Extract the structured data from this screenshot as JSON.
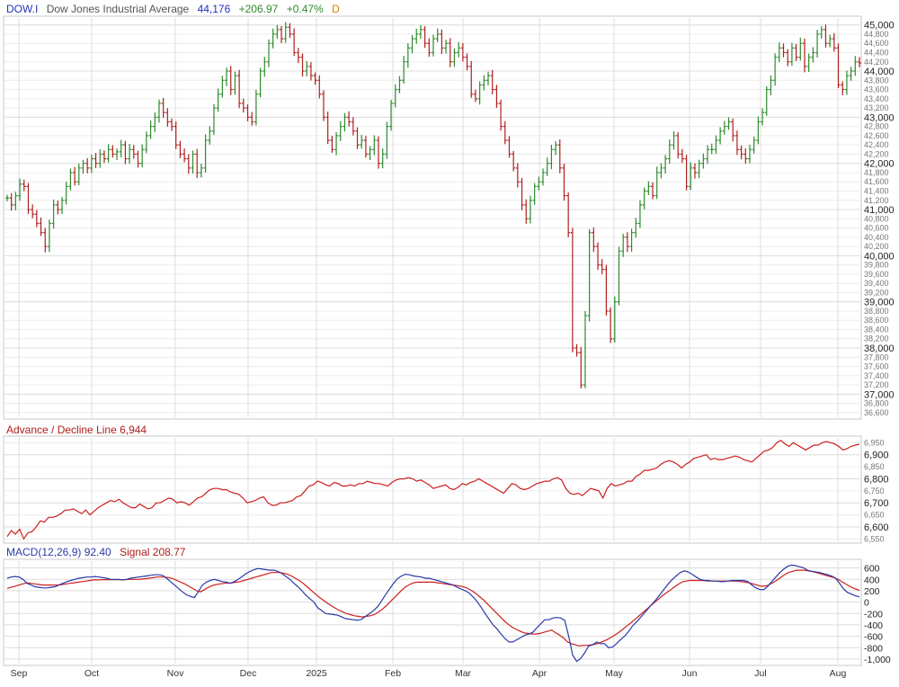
{
  "colors": {
    "up": "#2e8b2e",
    "down": "#b02020",
    "ad_line": "#cc1f1f",
    "macd": "#2b3aa8",
    "signal": "#cc1f1f",
    "symbol": "#2233bb",
    "grid": "#dcdcdc",
    "frame": "#c8c8c8",
    "axis_text": "#444444"
  },
  "header_price": {
    "symbol": "DOW.I",
    "name": "Dow Jones Industrial Average",
    "last": "44,176",
    "change": "+206.97",
    "change_pct": "+0.47%",
    "period": "D"
  },
  "header_ad": {
    "label": "Advance / Decline Line 6,944"
  },
  "header_macd": {
    "label": "MACD(12,26,9) 92.40",
    "signal_label": "Signal 208.77"
  },
  "chart_data": [
    {
      "type": "line",
      "title": "Dow Jones Industrial Average",
      "style": "ohlc-bars",
      "ylim": [
        36500,
        45150
      ],
      "y_major_ticks": [
        "45,000",
        "44,000",
        "43,000",
        "42,000",
        "41,000",
        "40,000",
        "39,000",
        "38,000",
        "37,000"
      ],
      "y_minor_ticks": [
        "44,800",
        "44,600",
        "44,400",
        "44,200",
        "43,800",
        "43,600",
        "43,400",
        "43,200",
        "42,800",
        "42,600",
        "42,400",
        "42,200",
        "41,800",
        "41,600",
        "41,400",
        "41,200",
        "40,800",
        "40,600",
        "40,400",
        "40,200",
        "39,800",
        "39,600",
        "39,400",
        "39,200",
        "38,800",
        "38,600",
        "38,400",
        "38,200",
        "37,800",
        "37,600",
        "37,400",
        "37,200",
        "36,800",
        "36,600"
      ],
      "x_tick_labels": [
        "Sep",
        "Oct",
        "Nov",
        "Dec",
        "2025",
        "Feb",
        "Mar",
        "Apr",
        "May",
        "Jun",
        "Jul",
        "Aug"
      ],
      "series": [
        {
          "name": "DOW.I",
          "closes": [
            41250,
            41100,
            41300,
            41550,
            41500,
            41000,
            40900,
            40700,
            40500,
            40200,
            40700,
            41100,
            41000,
            41200,
            41500,
            41800,
            41600,
            41900,
            42000,
            41900,
            42100,
            42000,
            42200,
            42100,
            42300,
            42200,
            42250,
            42400,
            42100,
            42300,
            42200,
            42000,
            42300,
            42600,
            42800,
            43000,
            43300,
            43100,
            42900,
            42800,
            42400,
            42200,
            42100,
            41900,
            42200,
            41800,
            41900,
            42500,
            42700,
            43200,
            43500,
            43800,
            44000,
            43600,
            43900,
            43300,
            43200,
            43000,
            42900,
            43500,
            44000,
            44200,
            44600,
            44800,
            44900,
            44700,
            44950,
            44800,
            44400,
            44300,
            44000,
            44100,
            43900,
            43800,
            43500,
            43000,
            42500,
            42300,
            42600,
            42800,
            43000,
            42900,
            42700,
            42400,
            42500,
            42200,
            42300,
            42500,
            42000,
            42200,
            42800,
            43300,
            43600,
            43800,
            44200,
            44500,
            44700,
            44800,
            44900,
            44600,
            44400,
            44700,
            44800,
            44500,
            44600,
            44200,
            44400,
            44500,
            44300,
            44100,
            43500,
            43400,
            43700,
            43800,
            43900,
            43600,
            43300,
            42800,
            42500,
            42200,
            41900,
            41600,
            41100,
            40800,
            41200,
            41500,
            41600,
            41800,
            42000,
            42300,
            42400,
            41900,
            41300,
            40500,
            38000,
            37900,
            37200,
            38700,
            40500,
            40200,
            39800,
            39700,
            38800,
            38200,
            39000,
            40100,
            40400,
            40200,
            40500,
            40700,
            41100,
            41400,
            41500,
            41300,
            41800,
            41900,
            42100,
            42400,
            42600,
            42200,
            42100,
            41500,
            41900,
            41800,
            42000,
            42100,
            42300,
            42300,
            42500,
            42700,
            42800,
            42900,
            42600,
            42300,
            42200,
            42100,
            42300,
            42500,
            42900,
            43100,
            43600,
            43800,
            44300,
            44500,
            44400,
            44200,
            44500,
            44300,
            44600,
            44100,
            44300,
            44400,
            44800,
            44900,
            44600,
            44700,
            44500,
            43700,
            43600,
            43900,
            44000,
            44200,
            44176
          ]
        }
      ]
    },
    {
      "type": "line",
      "title": "Advance / Decline Line",
      "ylim": [
        6540,
        6970
      ],
      "y_major_ticks": [
        "6,900",
        "6,800",
        "6,700",
        "6,600"
      ],
      "y_minor_ticks": [
        "6,950",
        "6,850",
        "6,750",
        "6,650",
        "6,550"
      ],
      "series": [
        {
          "name": "Advance / Decline Line",
          "values": [
            6560,
            6585,
            6570,
            6590,
            6550,
            6575,
            6580,
            6600,
            6625,
            6620,
            6640,
            6640,
            6645,
            6655,
            6670,
            6670,
            6675,
            6665,
            6655,
            6670,
            6650,
            6665,
            6680,
            6690,
            6700,
            6710,
            6705,
            6715,
            6700,
            6690,
            6680,
            6680,
            6695,
            6685,
            6675,
            6680,
            6700,
            6700,
            6710,
            6720,
            6715,
            6700,
            6705,
            6700,
            6690,
            6705,
            6720,
            6725,
            6740,
            6755,
            6760,
            6760,
            6755,
            6755,
            6745,
            6740,
            6735,
            6720,
            6700,
            6705,
            6710,
            6720,
            6725,
            6700,
            6690,
            6690,
            6700,
            6700,
            6705,
            6710,
            6725,
            6730,
            6750,
            6770,
            6775,
            6790,
            6785,
            6775,
            6770,
            6785,
            6780,
            6770,
            6770,
            6775,
            6770,
            6780,
            6780,
            6790,
            6785,
            6780,
            6780,
            6775,
            6770,
            6785,
            6795,
            6800,
            6800,
            6805,
            6800,
            6790,
            6795,
            6785,
            6775,
            6760,
            6765,
            6770,
            6775,
            6760,
            6755,
            6765,
            6780,
            6775,
            6785,
            6790,
            6800,
            6790,
            6780,
            6770,
            6760,
            6750,
            6740,
            6760,
            6780,
            6775,
            6760,
            6755,
            6760,
            6770,
            6780,
            6785,
            6790,
            6790,
            6800,
            6805,
            6795,
            6760,
            6740,
            6735,
            6740,
            6730,
            6745,
            6760,
            6755,
            6750,
            6720,
            6760,
            6780,
            6770,
            6775,
            6780,
            6790,
            6790,
            6810,
            6820,
            6835,
            6835,
            6840,
            6845,
            6860,
            6870,
            6875,
            6870,
            6860,
            6845,
            6860,
            6870,
            6885,
            6890,
            6895,
            6900,
            6880,
            6885,
            6880,
            6880,
            6885,
            6890,
            6895,
            6890,
            6880,
            6875,
            6870,
            6885,
            6900,
            6915,
            6920,
            6930,
            6950,
            6960,
            6945,
            6935,
            6950,
            6940,
            6930,
            6920,
            6930,
            6940,
            6940,
            6950,
            6955,
            6950,
            6945,
            6935,
            6920,
            6925,
            6935,
            6940,
            6944
          ]
        }
      ]
    },
    {
      "type": "line",
      "title": "MACD(12,26,9)",
      "ylim": [
        -1080,
        720
      ],
      "y_major_ticks": [
        "600",
        "400",
        "200",
        "0",
        "-200",
        "-400",
        "-600",
        "-800",
        "-1,000"
      ],
      "series": [
        {
          "name": "MACD(12,26,9)",
          "values": [
            420,
            440,
            450,
            440,
            400,
            330,
            300,
            270,
            260,
            250,
            250,
            260,
            270,
            300,
            330,
            360,
            380,
            400,
            420,
            430,
            440,
            440,
            450,
            440,
            430,
            420,
            400,
            400,
            400,
            390,
            400,
            420,
            430,
            440,
            450,
            460,
            470,
            480,
            480,
            470,
            420,
            360,
            300,
            240,
            180,
            130,
            100,
            80,
            180,
            300,
            350,
            380,
            400,
            380,
            360,
            350,
            330,
            360,
            400,
            450,
            500,
            540,
            570,
            590,
            580,
            570,
            560,
            560,
            540,
            500,
            450,
            400,
            330,
            270,
            200,
            120,
            60,
            0,
            -100,
            -150,
            -200,
            -210,
            -220,
            -230,
            -260,
            -290,
            -300,
            -310,
            -320,
            -300,
            -250,
            -200,
            -150,
            -80,
            20,
            130,
            230,
            330,
            410,
            460,
            490,
            480,
            460,
            450,
            440,
            420,
            420,
            400,
            380,
            360,
            340,
            320,
            300,
            260,
            230,
            200,
            160,
            90,
            10,
            -90,
            -200,
            -300,
            -400,
            -470,
            -560,
            -640,
            -700,
            -700,
            -660,
            -620,
            -580,
            -560,
            -530,
            -450,
            -380,
            -310,
            -310,
            -280,
            -270,
            -280,
            -320,
            -600,
            -930,
            -1040,
            -990,
            -890,
            -770,
            -750,
            -700,
            -730,
            -730,
            -800,
            -790,
            -730,
            -660,
            -600,
            -520,
            -420,
            -350,
            -270,
            -190,
            -110,
            -30,
            50,
            140,
            230,
            320,
            400,
            460,
            520,
            550,
            530,
            490,
            440,
            400,
            380,
            380,
            370,
            370,
            360,
            360,
            370,
            380,
            380,
            380,
            380,
            360,
            300,
            250,
            220,
            220,
            280,
            360,
            440,
            520,
            580,
            630,
            650,
            640,
            620,
            600,
            560,
            540,
            530,
            520,
            500,
            480,
            460,
            420,
            330,
            230,
            170,
            140,
            110,
            92
          ]
        },
        {
          "name": "Signal",
          "values": [
            240,
            260,
            280,
            300,
            320,
            340,
            330,
            320,
            310,
            300,
            300,
            300,
            300,
            300,
            310,
            320,
            330,
            340,
            350,
            360,
            370,
            380,
            390,
            390,
            395,
            395,
            395,
            395,
            395,
            395,
            395,
            400,
            400,
            400,
            405,
            410,
            420,
            430,
            440,
            440,
            440,
            430,
            410,
            380,
            350,
            320,
            280,
            240,
            200,
            180,
            220,
            260,
            290,
            310,
            320,
            330,
            335,
            340,
            350,
            360,
            380,
            400,
            420,
            440,
            460,
            480,
            500,
            520,
            520,
            520,
            510,
            490,
            460,
            420,
            380,
            330,
            270,
            210,
            150,
            90,
            40,
            -10,
            -60,
            -100,
            -140,
            -170,
            -200,
            -220,
            -240,
            -250,
            -260,
            -250,
            -240,
            -220,
            -180,
            -130,
            -70,
            0,
            70,
            140,
            210,
            270,
            310,
            340,
            350,
            350,
            350,
            350,
            350,
            340,
            330,
            320,
            310,
            300,
            290,
            280,
            260,
            230,
            190,
            140,
            80,
            20,
            -50,
            -120,
            -190,
            -260,
            -330,
            -390,
            -440,
            -480,
            -510,
            -540,
            -550,
            -560,
            -560,
            -550,
            -530,
            -510,
            -490,
            -540,
            -580,
            -630,
            -700,
            -730,
            -750,
            -770,
            -760,
            -760,
            -750,
            -740,
            -720,
            -690,
            -660,
            -620,
            -580,
            -530,
            -480,
            -420,
            -370,
            -310,
            -250,
            -190,
            -130,
            -70,
            -10,
            50,
            110,
            160,
            210,
            260,
            310,
            350,
            370,
            380,
            380,
            380,
            380,
            375,
            370,
            370,
            370,
            370,
            370,
            370,
            370,
            370,
            360,
            350,
            340,
            320,
            300,
            280,
            280,
            300,
            340,
            380,
            430,
            480,
            520,
            540,
            560,
            560,
            560,
            550,
            540,
            520,
            500,
            480,
            460,
            440,
            420,
            380,
            340,
            300,
            260,
            230,
            209
          ]
        }
      ]
    }
  ]
}
